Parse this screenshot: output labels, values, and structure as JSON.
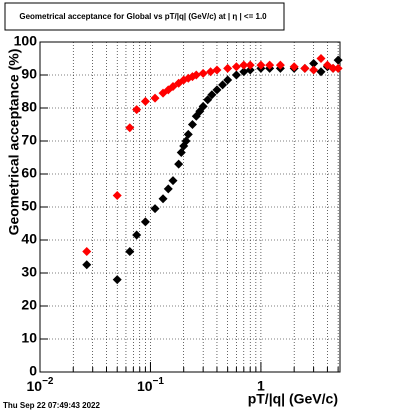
{
  "chart_data": {
    "type": "scatter",
    "title": "Geometrical acceptance for Global vs pT/|q| (GeV/c) at |  η | <= 1.0",
    "x_label": "pT/|q| (GeV/c)",
    "y_label": "Geometrical acceptance (%)",
    "footer": "Thu Sep 22 07:49:43 2022",
    "x_log": true,
    "grid": true,
    "xlim": [
      0.01,
      5.2
    ],
    "ylim": [
      0,
      100
    ],
    "xticks": [
      {
        "value": 0.01,
        "label": "10",
        "exponent": "−2"
      },
      {
        "value": 0.1,
        "label": "10",
        "exponent": "−1"
      },
      1
    ],
    "x_minor_ticks": [
      0.02,
      0.03,
      0.04,
      0.05,
      0.06,
      0.07,
      0.08,
      0.09,
      0.2,
      0.3,
      0.4,
      0.5,
      0.6,
      0.7,
      0.8,
      0.9,
      2,
      3,
      4,
      5
    ],
    "yticks": [
      0,
      10,
      20,
      30,
      40,
      50,
      60,
      70,
      80,
      90,
      100
    ],
    "series": [
      {
        "color": "#000000",
        "x": [
          0.0265,
          0.05,
          0.065,
          0.075,
          0.09,
          0.11,
          0.13,
          0.145,
          0.16,
          0.18,
          0.19,
          0.2,
          0.21,
          0.22,
          0.24,
          0.26,
          0.28,
          0.3,
          0.33,
          0.36,
          0.4,
          0.45,
          0.5,
          0.6,
          0.7,
          0.8,
          1.0,
          1.2,
          1.5,
          2,
          2.5,
          3,
          3.5,
          4,
          4.5,
          5
        ],
        "values": [
          32.5,
          28,
          36.5,
          41.5,
          45.5,
          49.5,
          52.5,
          55.5,
          58,
          63,
          66.5,
          68.5,
          70,
          72,
          75,
          77.5,
          79,
          80.5,
          82.5,
          84,
          85.5,
          87,
          88.5,
          90,
          91,
          91.5,
          92,
          92,
          92,
          92,
          92,
          93.5,
          91,
          92.5,
          92,
          94.5
        ]
      },
      {
        "color": "#ff0000",
        "x": [
          0.0265,
          0.05,
          0.065,
          0.075,
          0.09,
          0.11,
          0.13,
          0.145,
          0.16,
          0.18,
          0.2,
          0.22,
          0.24,
          0.26,
          0.3,
          0.35,
          0.4,
          0.5,
          0.6,
          0.7,
          0.8,
          1.0,
          1.2,
          1.5,
          2,
          2.5,
          3,
          3.5,
          4,
          4.5,
          5
        ],
        "values": [
          36.5,
          53.5,
          74,
          79.5,
          82,
          83,
          84.5,
          85.5,
          86.5,
          87.5,
          88.5,
          89,
          89.5,
          90,
          90.5,
          91,
          91.5,
          92,
          92.5,
          93,
          93,
          93,
          93,
          93,
          92.5,
          92,
          91.5,
          95,
          93,
          92,
          92
        ]
      }
    ]
  }
}
